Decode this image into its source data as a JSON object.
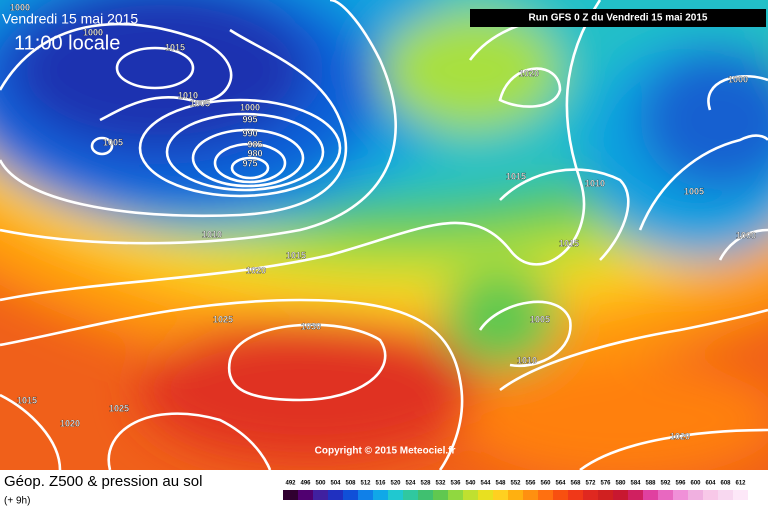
{
  "header": {
    "date": "Vendredi 15 mai 2015",
    "time": "11:00 locale",
    "run": "Run GFS 0 Z du Vendredi 15 mai 2015"
  },
  "isobar_labels": [
    1000,
    1000,
    1015,
    1010,
    1005,
    1000,
    995,
    990,
    985,
    980,
    975,
    1005,
    1010,
    1015,
    1020,
    1025,
    1030,
    1020,
    1000,
    1015,
    1010,
    1005,
    1000,
    1015,
    1005,
    1010,
    1015,
    1025,
    1020,
    1020
  ],
  "copyright": "Copyright © 2015 Meteociel.fr",
  "footer": {
    "title": "Géop. Z500 & pression au sol",
    "lead": "(+ 9h)"
  },
  "legend": {
    "labels": [
      492,
      496,
      500,
      504,
      508,
      512,
      516,
      520,
      524,
      528,
      532,
      536,
      540,
      544,
      548,
      552,
      556,
      560,
      564,
      568,
      572,
      576,
      580,
      584,
      588,
      592,
      596,
      600,
      604,
      608,
      612
    ]
  }
}
